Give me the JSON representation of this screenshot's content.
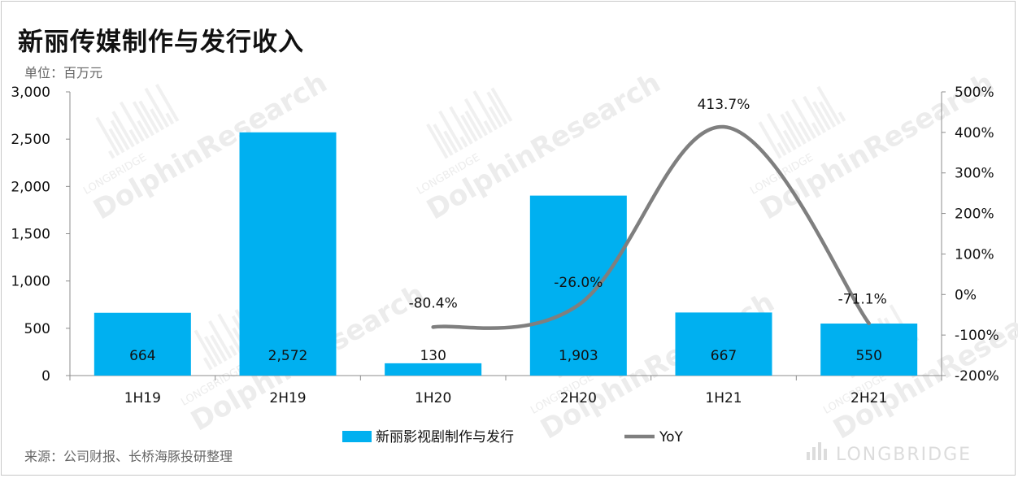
{
  "title": "新丽传媒制作与发行收入",
  "unit": "单位：百万元",
  "source": "来源：公司财报、长桥海豚投研整理",
  "watermark": {
    "brand": "LONGBRIDGE",
    "name": "DolphinResearch"
  },
  "footer_logo": "LONGBRIDGE",
  "chart_data": {
    "type": "bar",
    "categories": [
      "1H19",
      "2H19",
      "1H20",
      "2H20",
      "1H21",
      "2H21"
    ],
    "series": [
      {
        "name": "新丽影视剧制作与发行",
        "type": "bar",
        "axis": "left",
        "color": "#00b0f0",
        "values": [
          664,
          2572,
          130,
          1903,
          667,
          550
        ],
        "labels": [
          "664",
          "2,572",
          "130",
          "1,903",
          "667",
          "550"
        ]
      },
      {
        "name": "YoY",
        "type": "line",
        "axis": "right",
        "color": "#7f7f7f",
        "values": [
          null,
          null,
          -80.4,
          -26.0,
          413.7,
          -71.1
        ],
        "labels": [
          "",
          "",
          "-80.4%",
          "-26.0%",
          "413.7%",
          "-71.1%"
        ]
      }
    ],
    "left_axis": {
      "min": 0,
      "max": 3000,
      "ticks": [
        0,
        500,
        1000,
        1500,
        2000,
        2500,
        3000
      ],
      "tick_labels": [
        "0",
        "500",
        "1,000",
        "1,500",
        "2,000",
        "2,500",
        "3,000"
      ]
    },
    "right_axis": {
      "min": -200,
      "max": 500,
      "ticks": [
        -200,
        -100,
        0,
        100,
        200,
        300,
        400,
        500
      ],
      "tick_labels": [
        "-200%",
        "-100%",
        "0%",
        "100%",
        "200%",
        "300%",
        "400%",
        "500%"
      ]
    },
    "legend_position": "bottom",
    "grid": false
  }
}
